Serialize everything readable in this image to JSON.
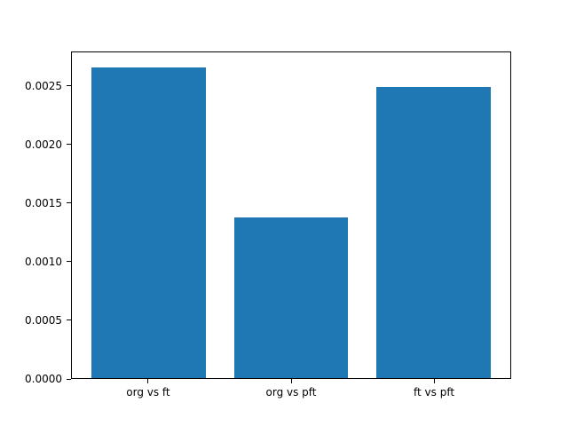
{
  "chart_data": {
    "type": "bar",
    "categories": [
      "org vs ft",
      "org vs pft",
      "ft vs pft"
    ],
    "values": [
      0.00266,
      0.00138,
      0.0025
    ],
    "title": "",
    "xlabel": "",
    "ylabel": "",
    "ylim": [
      0,
      0.002793
    ],
    "xlim": [
      -0.54,
      2.54
    ],
    "bar_width": 0.8,
    "yticks": [
      0.0,
      0.0005,
      0.001,
      0.0015,
      0.002,
      0.0025
    ],
    "ytick_labels": [
      "0.0000",
      "0.0005",
      "0.0010",
      "0.0015",
      "0.0020",
      "0.0025"
    ],
    "bar_color": "#1f77b4",
    "background_color": "#ffffff",
    "grid": false,
    "legend": "none"
  }
}
